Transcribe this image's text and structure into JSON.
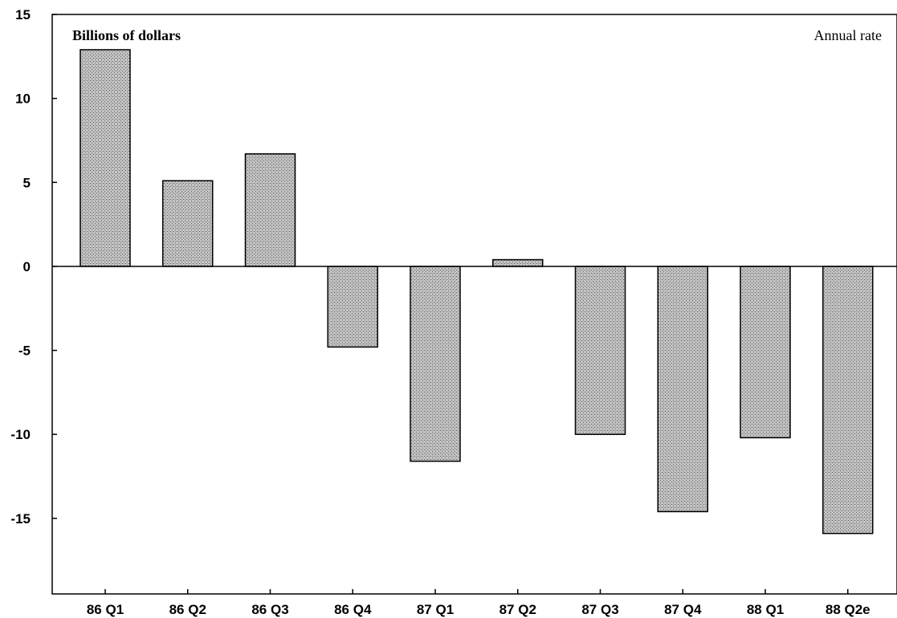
{
  "chart_data": {
    "type": "bar",
    "title": "",
    "ylabel": "Billions of dollars",
    "annotation": "Annual rate",
    "xlabel": "",
    "categories": [
      "86 Q1",
      "86 Q2",
      "86 Q3",
      "86 Q4",
      "87 Q1",
      "87 Q2",
      "87 Q3",
      "87 Q4",
      "88 Q1",
      "88 Q2e"
    ],
    "values": [
      12.9,
      5.1,
      6.7,
      -4.8,
      -11.6,
      0.4,
      -10.0,
      -14.6,
      -10.2,
      -15.9
    ],
    "ylim": [
      -19.5,
      15
    ],
    "yticks": [
      15,
      10,
      5,
      0,
      -5,
      -10,
      -15
    ],
    "ytick_labels": [
      "15",
      "10",
      "5",
      "0",
      "-5",
      "-10",
      "-15"
    ],
    "grid": false,
    "legend": "none",
    "bar_color": "#b4b4b4"
  }
}
